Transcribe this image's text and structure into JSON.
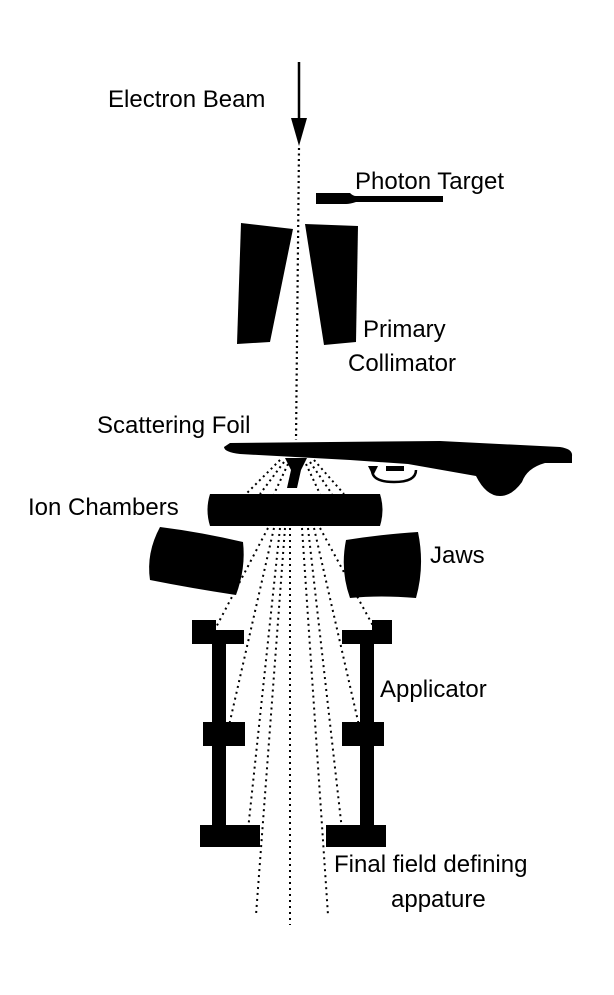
{
  "labels": {
    "electron_beam": "Electron Beam",
    "photon_target": "Photon Target",
    "primary_collimator_line1": "Primary",
    "primary_collimator_line2": "Collimator",
    "scattering_foil": "Scattering Foil",
    "ion_chambers": "Ion Chambers",
    "jaws": "Jaws",
    "applicator": "Applicator",
    "final_field_line1": "Final field defining",
    "final_field_line2": "appature"
  },
  "colors": {
    "ink": "#000000",
    "background": "#ffffff"
  }
}
